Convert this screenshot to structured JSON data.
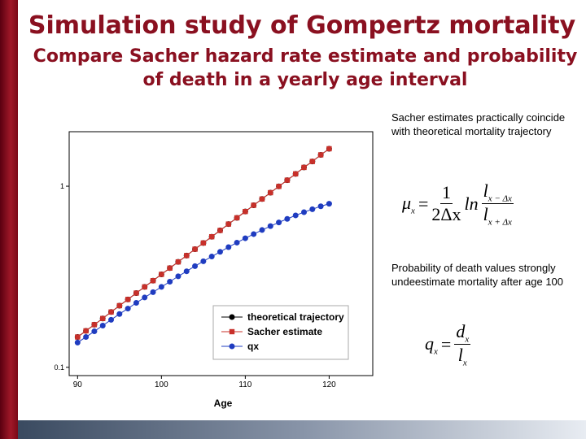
{
  "slide": {
    "title": "Simulation study of Gompertz mortality",
    "subtitle": "Compare Sacher hazard rate estimate and probability of death in a yearly age interval",
    "note1": "Sacher estimates practically coincide with theoretical mortality trajectory",
    "note2": "Probability of death values strongly undeestimate mortality after age 100",
    "formula1": {
      "lhs": "μ",
      "lhs_sub": "x",
      "eq": "=",
      "num": "1",
      "den": "2Δx",
      "fn": "ln",
      "top": "l",
      "top_sub": "x − Δx",
      "bottom": "l",
      "bottom_sub": "x + Δx"
    },
    "formula2": {
      "lhs": "q",
      "lhs_sub": "x",
      "eq": "=",
      "top": "d",
      "top_sub": "x",
      "bottom": "l",
      "bottom_sub": "x"
    }
  },
  "chart_data": {
    "type": "scatter",
    "x_label": "Age",
    "x": [
      90,
      91,
      92,
      93,
      94,
      95,
      96,
      97,
      98,
      99,
      100,
      101,
      102,
      103,
      104,
      105,
      106,
      107,
      108,
      109,
      110,
      111,
      112,
      113,
      114,
      115,
      116,
      117,
      118,
      119,
      120
    ],
    "series": [
      {
        "name": "theoretical trajectory",
        "color": "#000000",
        "marker": "circle",
        "values": [
          0.147,
          0.159,
          0.172,
          0.186,
          0.202,
          0.219,
          0.237,
          0.257,
          0.278,
          0.301,
          0.326,
          0.353,
          0.382,
          0.414,
          0.449,
          0.486,
          0.526,
          0.57,
          0.618,
          0.669,
          0.725,
          0.785,
          0.85,
          0.921,
          0.998,
          1.08,
          1.17,
          1.27,
          1.37,
          1.49,
          1.61
        ]
      },
      {
        "name": "Sacher estimate",
        "color": "#c8302a",
        "marker": "square",
        "values": [
          0.147,
          0.159,
          0.172,
          0.186,
          0.202,
          0.219,
          0.237,
          0.257,
          0.278,
          0.301,
          0.326,
          0.353,
          0.382,
          0.414,
          0.449,
          0.486,
          0.526,
          0.57,
          0.618,
          0.669,
          0.725,
          0.785,
          0.85,
          0.921,
          0.998,
          1.08,
          1.17,
          1.27,
          1.37,
          1.49,
          1.61
        ]
      },
      {
        "name": "qx",
        "color": "#1f3cc0",
        "marker": "circle",
        "values": [
          0.137,
          0.147,
          0.158,
          0.17,
          0.183,
          0.197,
          0.211,
          0.227,
          0.243,
          0.26,
          0.278,
          0.297,
          0.318,
          0.339,
          0.362,
          0.385,
          0.409,
          0.434,
          0.461,
          0.488,
          0.516,
          0.544,
          0.573,
          0.602,
          0.631,
          0.66,
          0.69,
          0.719,
          0.746,
          0.775,
          0.8
        ]
      }
    ],
    "xlim": [
      89,
      125.2
    ],
    "xticks": [
      90,
      100,
      110,
      120
    ],
    "ylim": [
      0.09,
      2.0
    ],
    "yticks": [
      0.1,
      1
    ],
    "log_y": true,
    "legend": "lower right"
  }
}
